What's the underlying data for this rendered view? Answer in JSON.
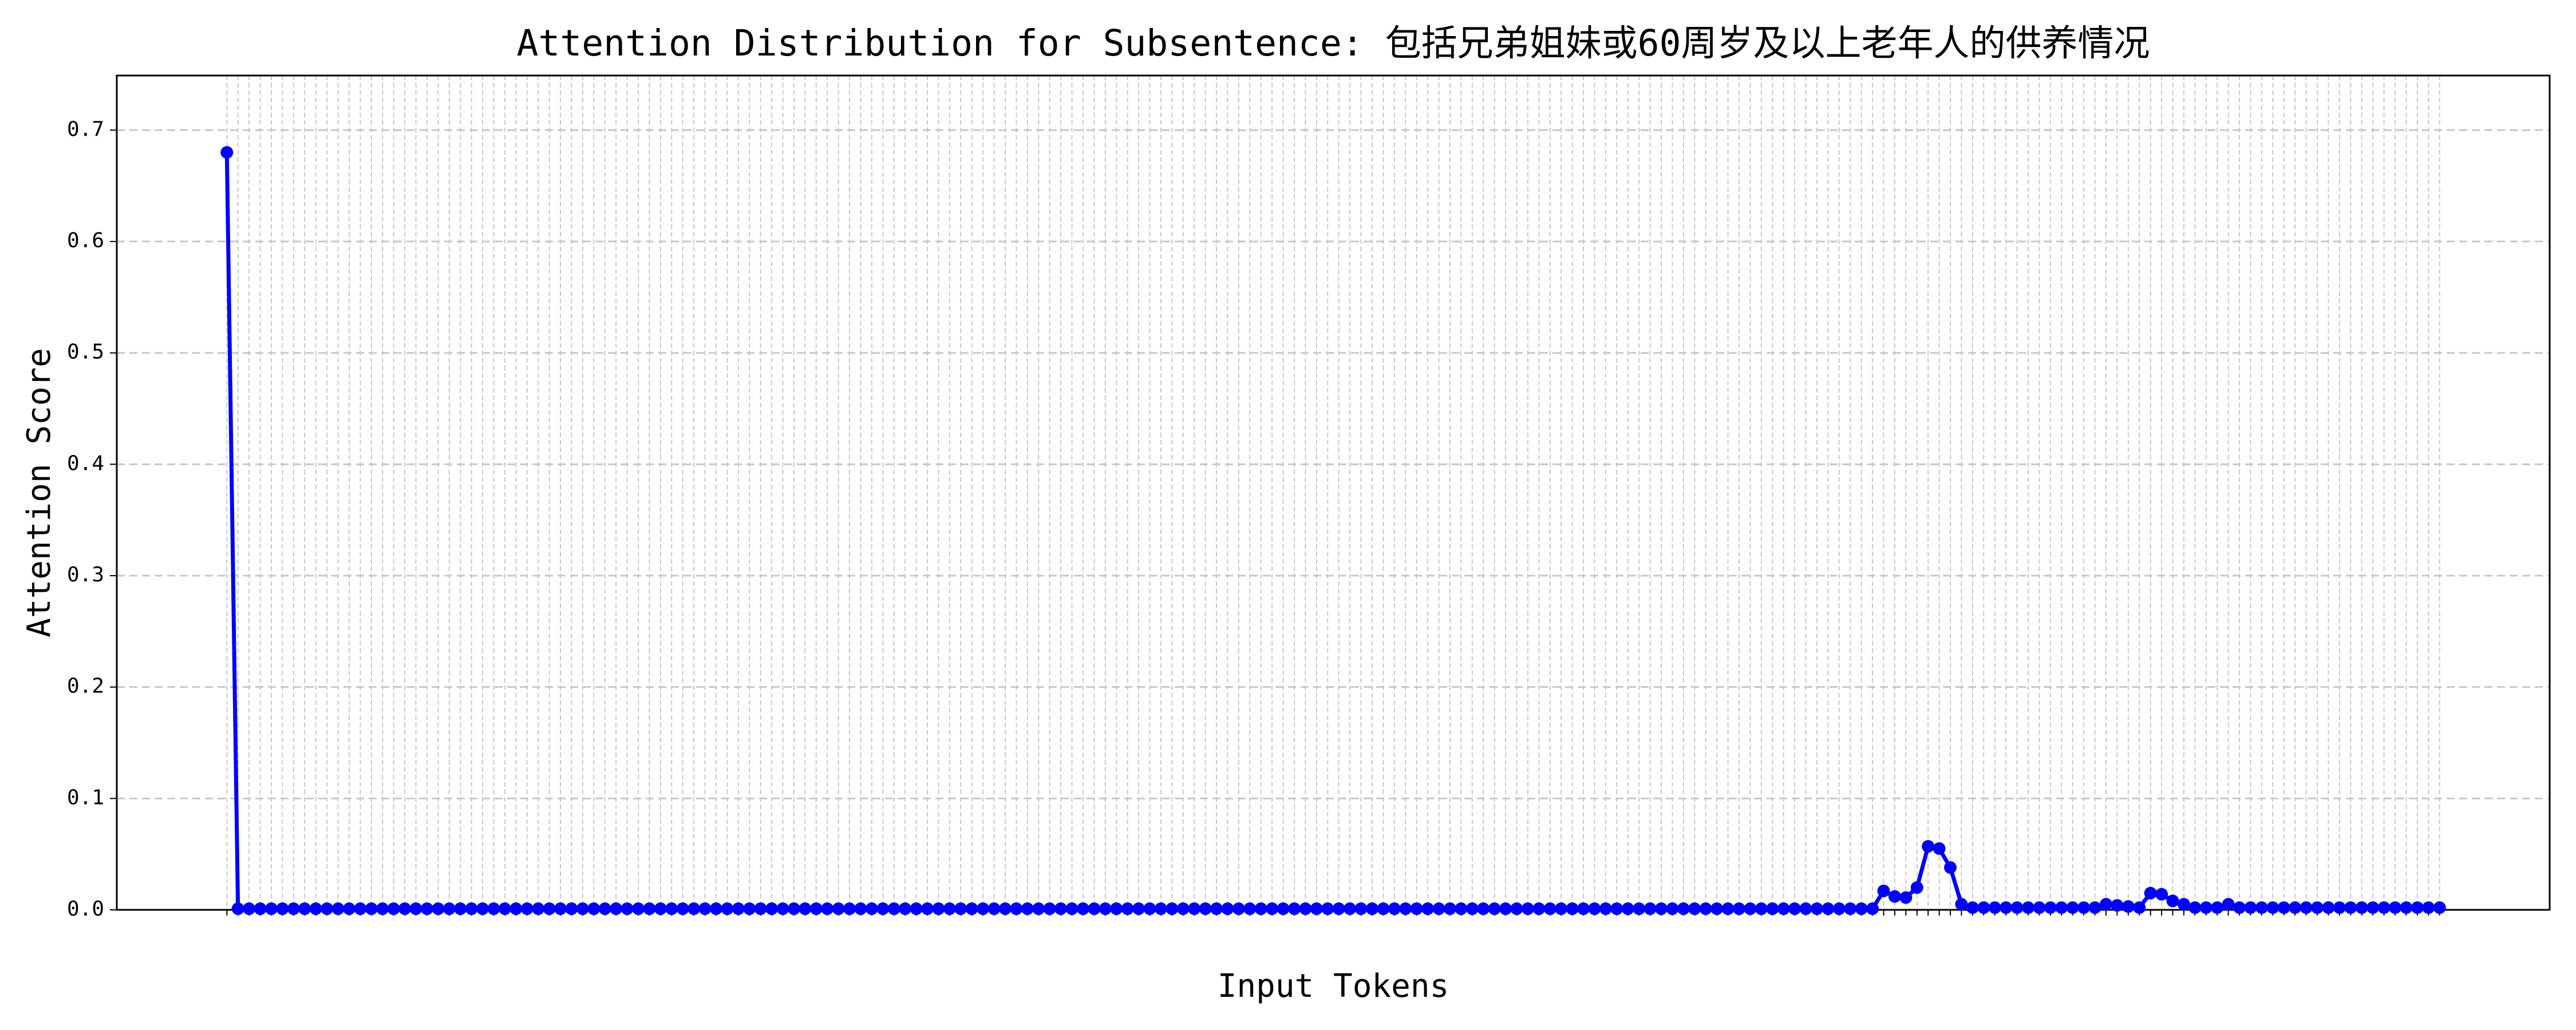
{
  "chart_data": {
    "type": "line",
    "title": "Attention Distribution for Subsentence: 包括兄弟姐妹或60周岁及以上老年人的供养情况",
    "x_label": "Input Tokens",
    "y_label": "Attention Score",
    "categories": [
      null,
      null,
      null,
      null,
      null,
      null,
      null,
      null,
      null,
      null,
      null,
      null,
      null,
      null,
      null,
      null,
      null,
      null,
      null,
      null,
      null,
      null,
      null,
      null,
      null,
      null,
      null,
      null,
      null,
      null,
      null,
      null,
      null,
      null,
      null,
      null,
      null,
      null,
      null,
      null,
      null,
      null,
      null,
      null,
      null,
      null,
      null,
      null,
      null,
      null,
      null,
      null,
      null,
      null,
      null,
      null,
      null,
      null,
      null,
      null,
      null,
      null,
      null,
      null,
      null,
      null,
      null,
      null,
      null,
      null,
      null,
      null,
      null,
      null,
      null,
      null,
      null,
      null,
      null,
      null,
      null,
      null,
      null,
      null,
      null,
      null,
      null,
      null,
      null,
      null,
      null,
      null,
      null,
      null,
      null,
      null,
      null,
      null,
      null,
      null,
      null,
      null,
      null,
      null,
      null,
      null,
      null,
      null,
      null,
      null,
      null,
      null,
      null,
      null,
      null,
      null,
      null,
      null,
      null,
      null,
      null,
      null,
      null,
      null,
      null,
      null,
      null,
      null,
      null,
      null,
      null,
      null,
      null,
      null,
      null,
      null,
      null,
      null,
      null,
      null,
      null,
      null,
      null,
      null,
      null,
      null,
      null,
      null,
      null,
      null,
      null,
      null,
      null,
      null,
      null,
      null,
      null,
      null,
      null,
      null,
      null,
      null,
      null,
      null,
      null,
      null,
      null,
      null,
      null,
      null,
      null,
      null,
      null,
      null,
      null,
      null,
      null,
      null,
      null,
      null,
      null,
      null,
      null,
      null,
      null,
      null,
      null,
      null,
      null,
      null,
      null,
      null,
      null,
      null,
      null,
      null,
      null,
      null,
      null,
      null
    ],
    "series": [
      {
        "color": "#0000ff",
        "values": [
          0.68,
          0.001,
          0.001,
          0.001,
          0.001,
          0.001,
          0.001,
          0.001,
          0.001,
          0.001,
          0.001,
          0.001,
          0.001,
          0.001,
          0.001,
          0.001,
          0.001,
          0.001,
          0.001,
          0.001,
          0.001,
          0.001,
          0.001,
          0.001,
          0.001,
          0.001,
          0.001,
          0.001,
          0.001,
          0.001,
          0.001,
          0.001,
          0.001,
          0.001,
          0.001,
          0.001,
          0.001,
          0.001,
          0.001,
          0.001,
          0.001,
          0.001,
          0.001,
          0.001,
          0.001,
          0.001,
          0.001,
          0.001,
          0.001,
          0.001,
          0.001,
          0.001,
          0.001,
          0.001,
          0.001,
          0.001,
          0.001,
          0.001,
          0.001,
          0.001,
          0.001,
          0.001,
          0.001,
          0.001,
          0.001,
          0.001,
          0.001,
          0.001,
          0.001,
          0.001,
          0.001,
          0.001,
          0.001,
          0.001,
          0.001,
          0.001,
          0.001,
          0.001,
          0.001,
          0.001,
          0.001,
          0.001,
          0.001,
          0.001,
          0.001,
          0.001,
          0.001,
          0.001,
          0.001,
          0.001,
          0.001,
          0.001,
          0.001,
          0.001,
          0.001,
          0.001,
          0.001,
          0.001,
          0.001,
          0.001,
          0.001,
          0.001,
          0.001,
          0.001,
          0.001,
          0.001,
          0.001,
          0.001,
          0.001,
          0.001,
          0.001,
          0.001,
          0.001,
          0.001,
          0.001,
          0.001,
          0.001,
          0.001,
          0.001,
          0.001,
          0.001,
          0.001,
          0.001,
          0.001,
          0.001,
          0.001,
          0.001,
          0.001,
          0.001,
          0.001,
          0.001,
          0.001,
          0.001,
          0.001,
          0.001,
          0.001,
          0.001,
          0.001,
          0.001,
          0.001,
          0.001,
          0.001,
          0.001,
          0.001,
          0.001,
          0.001,
          0.001,
          0.001,
          0.001,
          0.017,
          0.012,
          0.011,
          0.02,
          0.057,
          0.055,
          0.038,
          0.005,
          0.002,
          0.002,
          0.002,
          0.002,
          0.002,
          0.002,
          0.002,
          0.002,
          0.002,
          0.002,
          0.002,
          0.002,
          0.005,
          0.004,
          0.003,
          0.002,
          0.015,
          0.014,
          0.008,
          0.005,
          0.002,
          0.002,
          0.002,
          0.005,
          0.002,
          0.002,
          0.002,
          0.002,
          0.002,
          0.002,
          0.002,
          0.002,
          0.002,
          0.002,
          0.002,
          0.002,
          0.002,
          0.002,
          0.002,
          0.002,
          0.002,
          0.002,
          0.002
        ]
      }
    ],
    "ylim": [
      0,
      0.749
    ],
    "yticks": [
      {
        "value": 0,
        "label": "0.0"
      },
      0.1,
      0.2,
      0.3,
      0.4,
      0.5,
      0.6,
      0.7
    ],
    "grid": true
  }
}
